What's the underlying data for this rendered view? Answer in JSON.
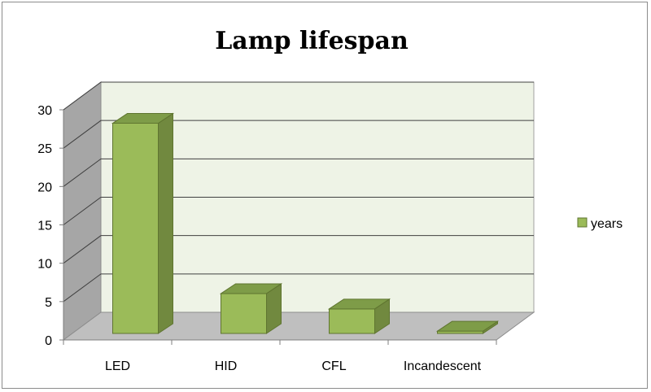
{
  "chart_data": {
    "type": "bar",
    "title": "Lamp lifespan",
    "categories": [
      "LED",
      "HID",
      "CFL",
      "Incandescent"
    ],
    "series": [
      {
        "name": "years",
        "values": [
          27.4,
          5.2,
          3.2,
          0.3
        ]
      }
    ],
    "ylim": [
      0,
      30
    ],
    "yticks": [
      0,
      5,
      10,
      15,
      20,
      25,
      30
    ],
    "grid": true,
    "legend_position": "right",
    "style": "3d-column",
    "colors": {
      "bar_front": "#9bbb59",
      "bar_side": "#71893f",
      "bar_top": "#7e9c48",
      "back_wall": "#eef3e6",
      "side_wall": "#a6a6a6",
      "floor": "#bfbfbf",
      "gridline": "#404040"
    }
  }
}
